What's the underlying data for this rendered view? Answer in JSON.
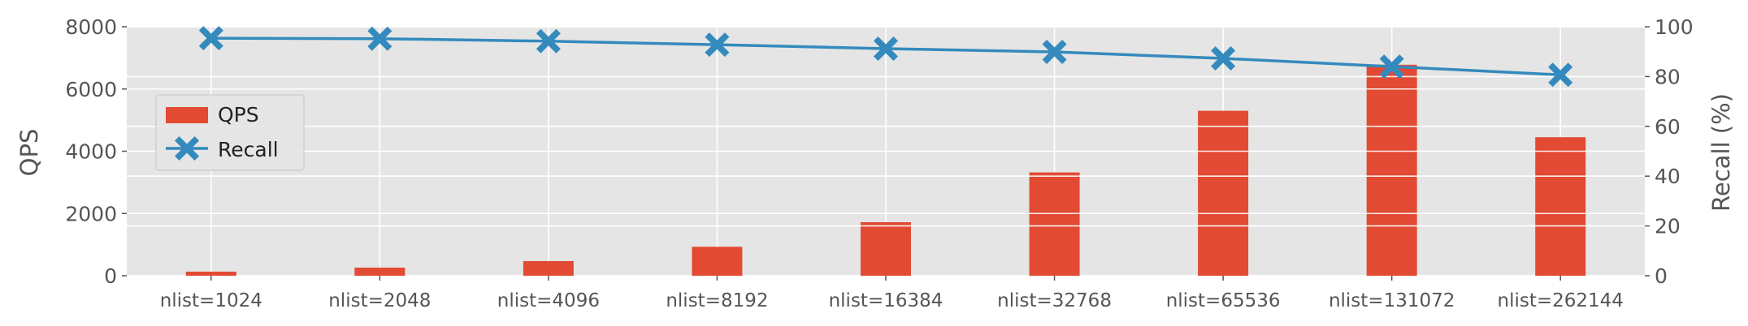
{
  "chart_data": {
    "type": "bar+line",
    "categories": [
      "nlist=1024",
      "nlist=2048",
      "nlist=4096",
      "nlist=8192",
      "nlist=16384",
      "nlist=32768",
      "nlist=65536",
      "nlist=131072",
      "nlist=262144"
    ],
    "series": [
      {
        "name": "QPS",
        "type": "bar",
        "axis": "left",
        "color": "#e24a33",
        "values": [
          130,
          260,
          470,
          930,
          1720,
          3320,
          5300,
          6780,
          4450
        ]
      },
      {
        "name": "Recall",
        "type": "line",
        "axis": "right",
        "color": "#348abd",
        "marker": "X",
        "values": [
          95.4,
          95.2,
          94.2,
          92.8,
          91.2,
          89.9,
          87.3,
          84.0,
          80.7
        ]
      }
    ],
    "ylabel": "QPS",
    "ylabel_right": "Recall (%)",
    "ylim": [
      0,
      8000
    ],
    "ylim_right": [
      0,
      100
    ],
    "yticks": [
      "0",
      "2000",
      "4000",
      "6000",
      "8000"
    ],
    "yticks_right": [
      "0",
      "20",
      "40",
      "60",
      "80",
      "100"
    ],
    "grid": true,
    "legend_position": "center-left",
    "style": "ggplot"
  }
}
